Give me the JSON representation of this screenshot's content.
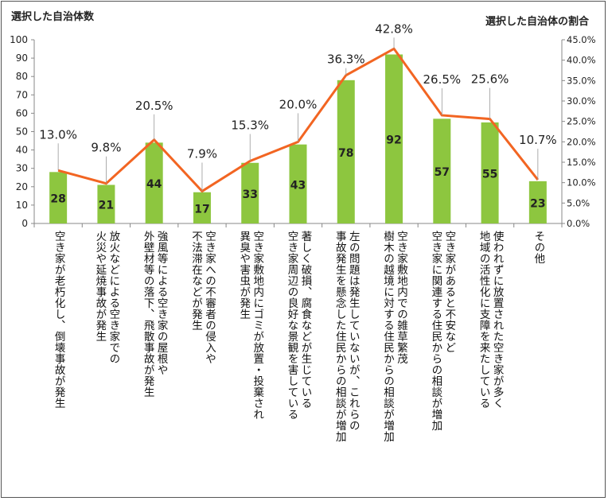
{
  "chart_data": {
    "type": "bar+line",
    "left_axis_title": "選択した自治体数",
    "right_axis_title": "選択した自治体の割合",
    "ylim": [
      0,
      100
    ],
    "y_ticks": [
      "0",
      "10",
      "20",
      "30",
      "40",
      "50",
      "60",
      "70",
      "80",
      "90",
      "100"
    ],
    "y2lim": [
      0,
      45
    ],
    "y2_ticks": [
      "0.0%",
      "5.0%",
      "10.0%",
      "15.0%",
      "20.0%",
      "25.0%",
      "30.0%",
      "35.0%",
      "40.0%",
      "45.0%"
    ],
    "categories": [
      [
        "空き家が老朽化し、倒壊事故が発生"
      ],
      [
        "放火などによる空き家での",
        "火災や延焼事故が発生"
      ],
      [
        "強風等による空き家の屋根や",
        "外壁材等の落下、飛散事故が発生"
      ],
      [
        "空き家への不審者の侵入や",
        "不法滞在などが発生"
      ],
      [
        "空き家敷地内にゴミが放置・投棄され",
        "異臭や害虫が発生"
      ],
      [
        "著しく破損、腐食などが生じている",
        "空き家周辺の良好な景観を害している"
      ],
      [
        "左の問題は発生していないが、これらの",
        "事故発生を懸念した住民からの相談が増加"
      ],
      [
        "空き家敷地内での雑草繁茂",
        "樹木の越境に対する住民からの相談が増加"
      ],
      [
        "空き家があると不安など",
        "空き家に関連する住民からの相談が増加"
      ],
      [
        "使われずに放置された空き家が多く",
        "地域の活性化に支障を来たしている"
      ],
      [
        "その他"
      ]
    ],
    "bar_values": [
      28,
      21,
      44,
      17,
      33,
      43,
      78,
      92,
      57,
      55,
      23
    ],
    "line_values": [
      13.0,
      9.8,
      20.5,
      7.9,
      15.3,
      20.0,
      36.3,
      42.8,
      26.5,
      25.6,
      10.7
    ],
    "line_labels": [
      "13.0%",
      "9.8%",
      "20.5%",
      "7.9%",
      "15.3%",
      "20.0%",
      "36.3%",
      "42.8%",
      "26.5%",
      "25.6%",
      "10.7%"
    ],
    "bar_color": "#8DC63F",
    "line_color": "#F26522",
    "grid": false
  }
}
